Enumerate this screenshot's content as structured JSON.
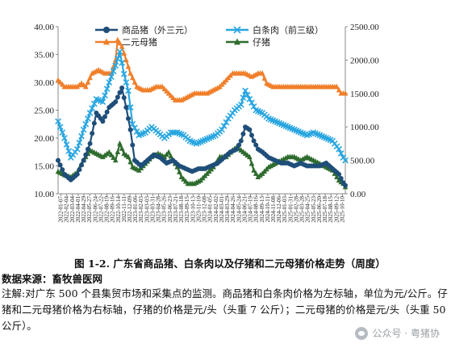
{
  "chart_data": {
    "type": "line",
    "left_axis": {
      "min": 10,
      "max": 40,
      "ticks": [
        "10.00",
        "15.00",
        "20.00",
        "25.00",
        "30.00",
        "35.00",
        "40.00"
      ]
    },
    "right_axis": {
      "min": 0,
      "max": 2500,
      "ticks": [
        "0.00",
        "500.00",
        "1000.00",
        "1500.00",
        "2000.00",
        "2500.00"
      ]
    },
    "x_tick_labels": [
      "2022-01-07",
      "2022-02-04",
      "2022-03-04",
      "2022-04-01",
      "2022-04-29",
      "2022-05-27",
      "2022-06-24",
      "2022-07-22",
      "2022-08-19",
      "2022-09-16",
      "2022-10-14",
      "2022-11-11",
      "2022-12-09",
      "2023-01-06",
      "2023-02-03",
      "2023-03-03",
      "2023-03-31",
      "2023-04-28",
      "2023-05-26",
      "2023-06-23",
      "2023-07-21",
      "2023-08-18",
      "2023-09-15",
      "2023-10-13",
      "2023-11-10",
      "2023-12-08",
      "2024-01-05",
      "2024-02-02",
      "2024-03-01",
      "2024-03-29",
      "2024-04-26",
      "2024-05-24",
      "2024-06-21",
      "2024-07-19",
      "2024-08-16",
      "2024-09-13",
      "2024-10-11",
      "2024-11-08",
      "2024-12-06",
      "2025-01-03",
      "2025-01-31",
      "2025-02-28",
      "2025-03-28",
      "2025-04-25",
      "2025-05-23",
      "2025-06-20",
      "2025-07-18",
      "2025-08-15",
      "2025-09-12",
      "2025-10-10"
    ],
    "legend": "top",
    "series": [
      {
        "name": "商品猪（外三元）",
        "axis": "left",
        "color": "#1f4e79",
        "marker": "circle",
        "keypoints": [
          [
            0,
            16.0
          ],
          [
            3,
            13.5
          ],
          [
            6,
            12.5
          ],
          [
            9,
            13.5
          ],
          [
            12,
            16.0
          ],
          [
            15,
            19.0
          ],
          [
            18,
            24.5
          ],
          [
            21,
            23.0
          ],
          [
            24,
            25.5
          ],
          [
            27,
            26.5
          ],
          [
            30,
            29.0
          ],
          [
            32,
            25.5
          ],
          [
            34,
            21.5
          ],
          [
            36,
            16.0
          ],
          [
            39,
            15.0
          ],
          [
            42,
            16.0
          ],
          [
            45,
            17.0
          ],
          [
            48,
            16.5
          ],
          [
            51,
            15.5
          ],
          [
            54,
            16.0
          ],
          [
            57,
            15.0
          ],
          [
            60,
            14.5
          ],
          [
            63,
            14.0
          ],
          [
            66,
            14.5
          ],
          [
            69,
            14.5
          ],
          [
            72,
            15.0
          ],
          [
            75,
            15.5
          ],
          [
            78,
            16.5
          ],
          [
            81,
            17.5
          ],
          [
            84,
            18.0
          ],
          [
            86,
            19.5
          ],
          [
            88,
            22.0
          ],
          [
            90,
            21.5
          ],
          [
            92,
            19.5
          ],
          [
            94,
            18.0
          ],
          [
            96,
            17.5
          ],
          [
            99,
            16.5
          ],
          [
            102,
            16.0
          ],
          [
            105,
            15.5
          ],
          [
            108,
            15.5
          ],
          [
            111,
            15.0
          ],
          [
            114,
            15.5
          ],
          [
            117,
            15.0
          ],
          [
            120,
            15.0
          ],
          [
            123,
            15.0
          ],
          [
            126,
            15.5
          ],
          [
            129,
            14.5
          ],
          [
            132,
            13.5
          ],
          [
            134,
            12.0
          ],
          [
            135,
            11.5
          ]
        ]
      },
      {
        "name": "白条肉（前三级）",
        "axis": "left",
        "color": "#29a6e0",
        "marker": "x",
        "keypoints": [
          [
            0,
            23.0
          ],
          [
            3,
            20.0
          ],
          [
            6,
            16.5
          ],
          [
            9,
            18.0
          ],
          [
            12,
            21.5
          ],
          [
            15,
            24.5
          ],
          [
            18,
            27.0
          ],
          [
            21,
            26.5
          ],
          [
            24,
            30.0
          ],
          [
            27,
            33.0
          ],
          [
            29,
            35.5
          ],
          [
            31,
            31.5
          ],
          [
            33,
            28.5
          ],
          [
            35,
            22.5
          ],
          [
            38,
            20.5
          ],
          [
            41,
            21.0
          ],
          [
            44,
            22.0
          ],
          [
            47,
            21.0
          ],
          [
            50,
            20.0
          ],
          [
            53,
            21.0
          ],
          [
            56,
            21.0
          ],
          [
            59,
            20.5
          ],
          [
            62,
            19.5
          ],
          [
            65,
            19.0
          ],
          [
            68,
            19.5
          ],
          [
            71,
            20.0
          ],
          [
            74,
            20.5
          ],
          [
            77,
            21.5
          ],
          [
            80,
            23.5
          ],
          [
            83,
            25.0
          ],
          [
            86,
            26.0
          ],
          [
            88,
            28.5
          ],
          [
            90,
            27.0
          ],
          [
            93,
            25.0
          ],
          [
            96,
            24.5
          ],
          [
            99,
            23.5
          ],
          [
            102,
            23.0
          ],
          [
            105,
            22.5
          ],
          [
            108,
            22.0
          ],
          [
            111,
            21.5
          ],
          [
            114,
            21.0
          ],
          [
            117,
            20.5
          ],
          [
            120,
            21.0
          ],
          [
            123,
            20.5
          ],
          [
            126,
            20.0
          ],
          [
            129,
            19.5
          ],
          [
            132,
            18.0
          ],
          [
            134,
            16.5
          ],
          [
            135,
            16.0
          ]
        ]
      },
      {
        "name": "二元母猪",
        "axis": "right",
        "color": "#f07f2a",
        "marker": "triangle",
        "keypoints": [
          [
            0,
            1700
          ],
          [
            3,
            1600
          ],
          [
            6,
            1600
          ],
          [
            9,
            1600
          ],
          [
            11,
            1650
          ],
          [
            13,
            1600
          ],
          [
            16,
            1800
          ],
          [
            19,
            1850
          ],
          [
            22,
            1800
          ],
          [
            25,
            1800
          ],
          [
            27,
            2000
          ],
          [
            28,
            2300
          ],
          [
            30,
            2200
          ],
          [
            32,
            2000
          ],
          [
            34,
            1800
          ],
          [
            37,
            1600
          ],
          [
            40,
            1550
          ],
          [
            43,
            1550
          ],
          [
            46,
            1600
          ],
          [
            49,
            1600
          ],
          [
            52,
            1500
          ],
          [
            55,
            1400
          ],
          [
            58,
            1400
          ],
          [
            61,
            1450
          ],
          [
            64,
            1500
          ],
          [
            67,
            1500
          ],
          [
            70,
            1500
          ],
          [
            73,
            1550
          ],
          [
            76,
            1600
          ],
          [
            79,
            1700
          ],
          [
            82,
            1800
          ],
          [
            85,
            1800
          ],
          [
            88,
            1800
          ],
          [
            91,
            1750
          ],
          [
            94,
            1800
          ],
          [
            96,
            1800
          ],
          [
            98,
            1650
          ],
          [
            101,
            1600
          ],
          [
            104,
            1600
          ],
          [
            107,
            1600
          ],
          [
            110,
            1600
          ],
          [
            113,
            1600
          ],
          [
            116,
            1600
          ],
          [
            119,
            1600
          ],
          [
            122,
            1600
          ],
          [
            125,
            1600
          ],
          [
            128,
            1600
          ],
          [
            131,
            1600
          ],
          [
            133,
            1500
          ],
          [
            135,
            1500
          ]
        ]
      },
      {
        "name": "仔猪",
        "axis": "right",
        "color": "#2e6b2e",
        "marker": "triangle",
        "keypoints": [
          [
            0,
            330
          ],
          [
            3,
            280
          ],
          [
            6,
            250
          ],
          [
            9,
            320
          ],
          [
            12,
            500
          ],
          [
            15,
            650
          ],
          [
            18,
            600
          ],
          [
            21,
            550
          ],
          [
            24,
            620
          ],
          [
            27,
            500
          ],
          [
            29,
            750
          ],
          [
            31,
            600
          ],
          [
            33,
            550
          ],
          [
            35,
            400
          ],
          [
            38,
            350
          ],
          [
            41,
            450
          ],
          [
            44,
            550
          ],
          [
            47,
            600
          ],
          [
            50,
            550
          ],
          [
            52,
            620
          ],
          [
            54,
            500
          ],
          [
            56,
            400
          ],
          [
            58,
            250
          ],
          [
            61,
            150
          ],
          [
            64,
            150
          ],
          [
            67,
            200
          ],
          [
            70,
            300
          ],
          [
            73,
            400
          ],
          [
            76,
            550
          ],
          [
            79,
            550
          ],
          [
            82,
            650
          ],
          [
            84,
            700
          ],
          [
            86,
            650
          ],
          [
            88,
            600
          ],
          [
            90,
            550
          ],
          [
            92,
            350
          ],
          [
            94,
            250
          ],
          [
            96,
            300
          ],
          [
            99,
            400
          ],
          [
            102,
            450
          ],
          [
            105,
            500
          ],
          [
            108,
            550
          ],
          [
            111,
            550
          ],
          [
            114,
            500
          ],
          [
            117,
            550
          ],
          [
            120,
            500
          ],
          [
            123,
            450
          ],
          [
            126,
            400
          ],
          [
            129,
            350
          ],
          [
            132,
            200
          ],
          [
            134,
            150
          ],
          [
            135,
            100
          ]
        ]
      }
    ]
  },
  "caption": "图 1-2. 广东省商品猪、白条肉以及仔猪和二元母猪价格走势（周度）",
  "source": "数据来源：畜牧兽医网",
  "note": "注解:对广东 500 个县集贸市场和采集点的监测。商品猪和白条肉价格为左标轴，单位为元/公斤。仔猪和二元母猪价格为右标轴，仔猪的价格是元/头（头重 7 公斤）；二元母猪的价格是元/头（头重 50 公斤）。",
  "watermark": "公众号 · 粤猪协"
}
